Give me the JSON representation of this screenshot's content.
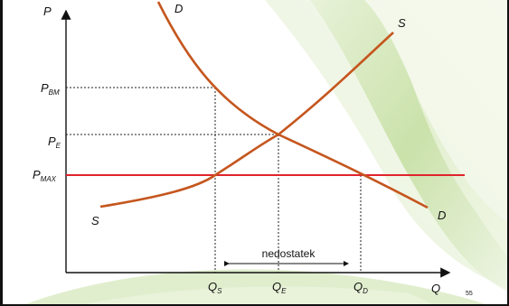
{
  "diagram": {
    "axes": {
      "y_label": "P",
      "x_label": "Q"
    },
    "curves": {
      "demand_top_label": "D",
      "demand_bottom_label": "D",
      "supply_top_label": "S",
      "supply_bottom_label": "S"
    },
    "price_levels": [
      {
        "main": "P",
        "sub": "BM"
      },
      {
        "main": "P",
        "sub": "E"
      },
      {
        "main": "P",
        "sub": "MAX"
      }
    ],
    "quantity_levels": [
      {
        "main": "Q",
        "sub": "S"
      },
      {
        "main": "Q",
        "sub": "E"
      },
      {
        "main": "Q",
        "sub": "D"
      }
    ],
    "shortage_label": "nedostatek",
    "colors": {
      "curves": "#c5561e",
      "price_ceiling": "#e0242c",
      "guides": "#222222"
    }
  },
  "slide_number": "55"
}
